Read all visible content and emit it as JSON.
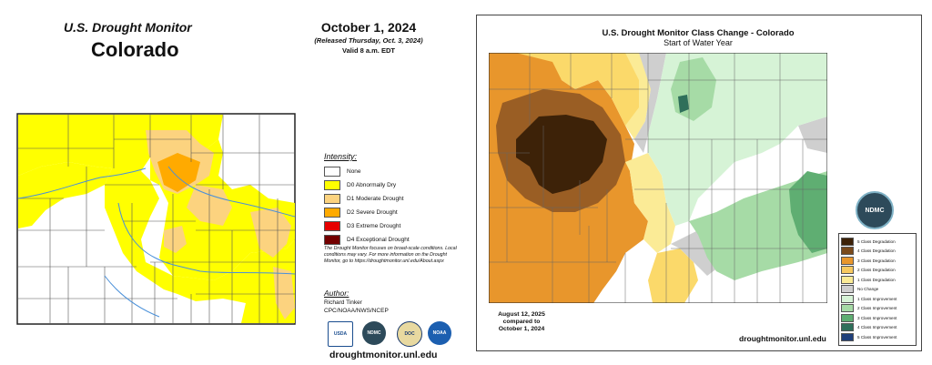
{
  "left": {
    "title": "U.S. Drought Monitor",
    "state": "Colorado",
    "date": "October 1, 2024",
    "released": "(Released Thursday, Oct. 3, 2024)",
    "valid": "Valid 8 a.m. EDT",
    "legend": {
      "title": "Intensity:",
      "items": [
        {
          "label": "None",
          "color": "#ffffff"
        },
        {
          "label": "D0 Abnormally Dry",
          "color": "#ffff00"
        },
        {
          "label": "D1 Moderate Drought",
          "color": "#fcd37f"
        },
        {
          "label": "D2 Severe Drought",
          "color": "#ffaa00"
        },
        {
          "label": "D3 Extreme Drought",
          "color": "#e60000"
        },
        {
          "label": "D4 Exceptional Drought",
          "color": "#730000"
        }
      ]
    },
    "disclaimer": "The Drought Monitor focuses on broad-scale conditions. Local conditions may vary. For more information on the Drought Monitor, go to https://droughtmonitor.unl.edu/About.aspx",
    "author_title": "Author:",
    "author_name": "Richard Tinker",
    "author_org": "CPC/NOAA/NWS/NCEP",
    "logos": [
      "USDA",
      "NDMC",
      "DOC",
      "NOAA"
    ],
    "website": "droughtmonitor.unl.edu"
  },
  "right": {
    "title": "U.S. Drought Monitor Class Change - Colorado",
    "subtitle": "Start of Water Year",
    "compare_date": "August 12, 2025",
    "compare_text": "compared to",
    "compare_base": "October 1, 2024",
    "logo": "NDMC",
    "website": "droughtmonitor.unl.edu",
    "legend": [
      {
        "label": "5 Class Degradation",
        "color": "#3d2208"
      },
      {
        "label": "4 Class Degradation",
        "color": "#7a4a1c"
      },
      {
        "label": "3 Class Degradation",
        "color": "#e8962c"
      },
      {
        "label": "2 Class Degradation",
        "color": "#f7c960"
      },
      {
        "label": "1 Class Degradation",
        "color": "#fbeb96"
      },
      {
        "label": "No Change",
        "color": "#cfcfcf"
      },
      {
        "label": "1 Class Improvement",
        "color": "#d6f3d6"
      },
      {
        "label": "2 Class Improvement",
        "color": "#a6dba6"
      },
      {
        "label": "3 Class Improvement",
        "color": "#5fae72"
      },
      {
        "label": "4 Class Improvement",
        "color": "#2f6f5a"
      },
      {
        "label": "5 Class Improvement",
        "color": "#1f3f7a"
      }
    ]
  }
}
